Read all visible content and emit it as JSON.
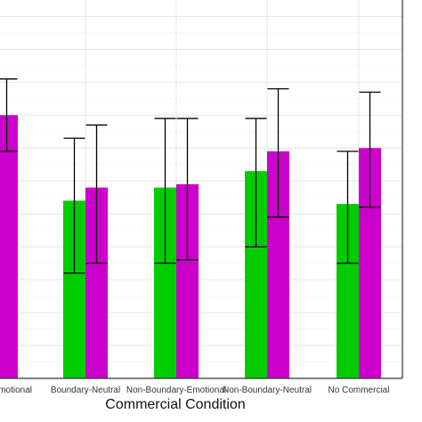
{
  "chart_data": {
    "type": "bar",
    "xlabel": "Commercial Condition",
    "categories": [
      "Boundary-Emotional",
      "Boundary-Neutral",
      "Non-Boundary-Emotional",
      "Non-Boundary-Neutral",
      "No Commercial"
    ],
    "visible_category_labels": [
      "motional",
      "Boundary-Neutral",
      "Non-Boundary-Emotional",
      "Non-Boundary-Neutral",
      "No Commercial"
    ],
    "series": [
      {
        "color": "#00cc00",
        "values": [
          null,
          5.4,
          5.8,
          6.3,
          5.3
        ],
        "error_low": [
          null,
          3.2,
          3.5,
          4.0,
          3.5
        ],
        "error_high": [
          null,
          7.3,
          7.9,
          7.9,
          6.9
        ]
      },
      {
        "color": "#cc00cc",
        "values": [
          8.0,
          5.8,
          5.9,
          6.9,
          7.0
        ],
        "error_low": [
          6.9,
          3.5,
          3.6,
          4.9,
          5.2
        ],
        "error_high": [
          9.1,
          7.7,
          7.9,
          8.8,
          8.7
        ]
      }
    ],
    "ylim": [
      0,
      11.5
    ],
    "grid": true,
    "gridlines_y": [
      1,
      2,
      3,
      4,
      5,
      6,
      7,
      8,
      9,
      10,
      11
    ],
    "gridlines_y_minor": [
      0.5,
      1.5,
      2.5,
      3.5,
      4.5,
      5.5,
      6.5,
      7.5,
      8.5,
      9.5,
      10.5,
      11.5
    ]
  }
}
